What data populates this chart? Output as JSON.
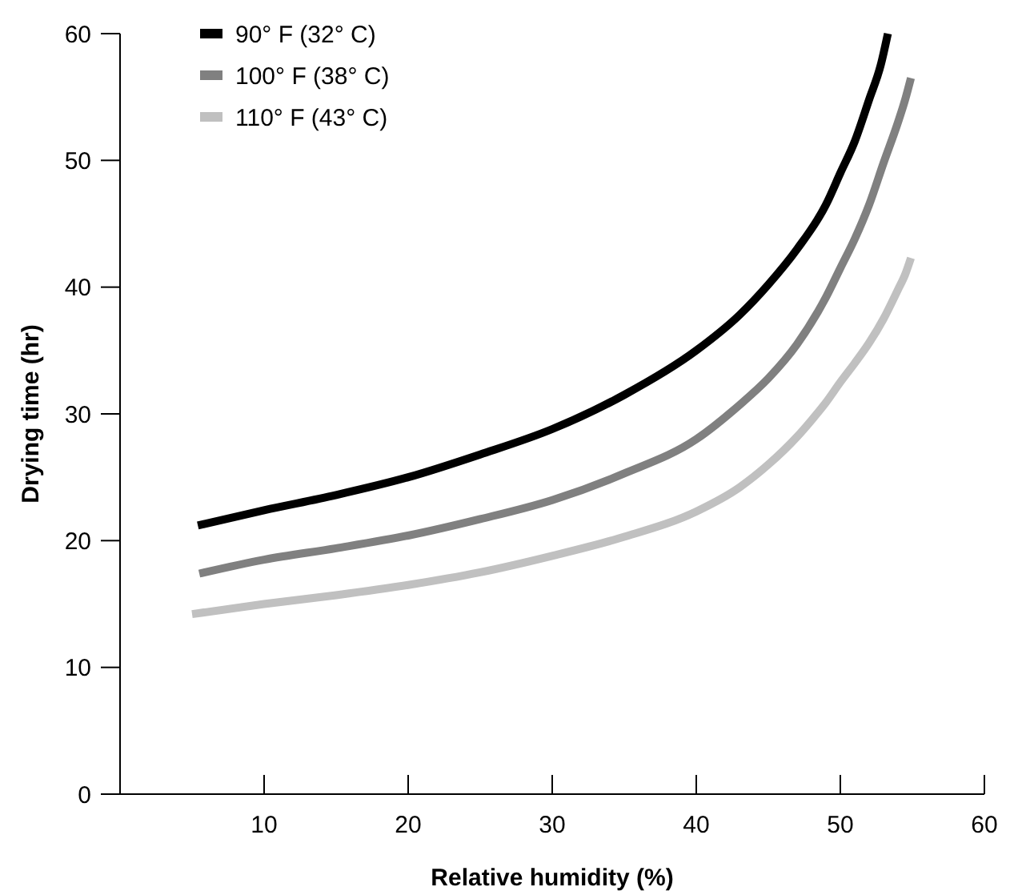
{
  "chart_data": {
    "type": "line",
    "xlabel": "Relative humidity (%)",
    "ylabel": "Drying time (hr)",
    "xlim": [
      0,
      60
    ],
    "ylim": [
      0,
      60
    ],
    "xticks": [
      10,
      20,
      30,
      40,
      50,
      60
    ],
    "yticks": [
      0,
      10,
      20,
      30,
      40,
      50,
      60
    ],
    "legend": "top left",
    "grid": false,
    "marker": "none",
    "line_style": "solid",
    "series": [
      {
        "name": "90° F (32° C)",
        "color": "#000000",
        "x": [
          5.4,
          10,
          15,
          20,
          25,
          30,
          35,
          40,
          43,
          45,
          47,
          49,
          50,
          51,
          52,
          52.8,
          53.3
        ],
        "values": [
          21.2,
          22.4,
          23.6,
          25,
          26.8,
          28.8,
          31.5,
          35,
          37.8,
          40.2,
          43,
          46.5,
          49,
          51.5,
          54.8,
          57.5,
          60
        ]
      },
      {
        "name": "100° F (38° C)",
        "color": "#808080",
        "x": [
          5.5,
          10,
          15,
          20,
          25,
          30,
          35,
          40,
          43,
          45,
          47,
          49,
          50,
          51,
          52,
          53,
          54,
          54.5,
          54.9
        ],
        "values": [
          17.4,
          18.5,
          19.4,
          20.4,
          21.7,
          23.2,
          25.3,
          28,
          30.7,
          32.8,
          35.5,
          39.2,
          41.5,
          43.8,
          46.5,
          49.8,
          53,
          54.8,
          56.5
        ]
      },
      {
        "name": "110° F (43° C)",
        "color": "#c0c0c0",
        "x": [
          5,
          10,
          15,
          20,
          25,
          30,
          35,
          40,
          43,
          45,
          47,
          48,
          49,
          50,
          51,
          52,
          53,
          54,
          54.5,
          54.9
        ],
        "values": [
          14.2,
          15,
          15.7,
          16.5,
          17.5,
          18.8,
          20.3,
          22.3,
          24.2,
          26,
          28.2,
          29.5,
          30.9,
          32.5,
          34,
          35.6,
          37.5,
          39.8,
          41,
          42.3
        ]
      }
    ]
  }
}
